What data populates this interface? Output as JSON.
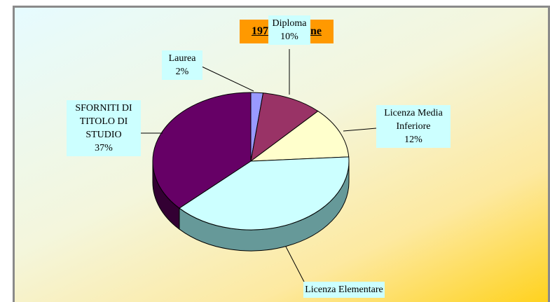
{
  "chart_data": {
    "type": "pie3d",
    "title": "1971 Femmine",
    "categories": [
      "Laurea",
      "Diploma",
      "Licenza Media Inferiore",
      "Licenza Elementare",
      "SFORNITI DI TITOLO DI STUDIO"
    ],
    "values": [
      2,
      10,
      12,
      39,
      37
    ],
    "value_labels": [
      "2%",
      "10%",
      "12%",
      null,
      "37%"
    ],
    "colors": [
      "#9999ff",
      "#993366",
      "#ffffcc",
      "#ccffff",
      "#660066"
    ],
    "side_colors": [
      "#6666aa",
      "#662244",
      "#aaaa88",
      "#669999",
      "#330033"
    ]
  }
}
